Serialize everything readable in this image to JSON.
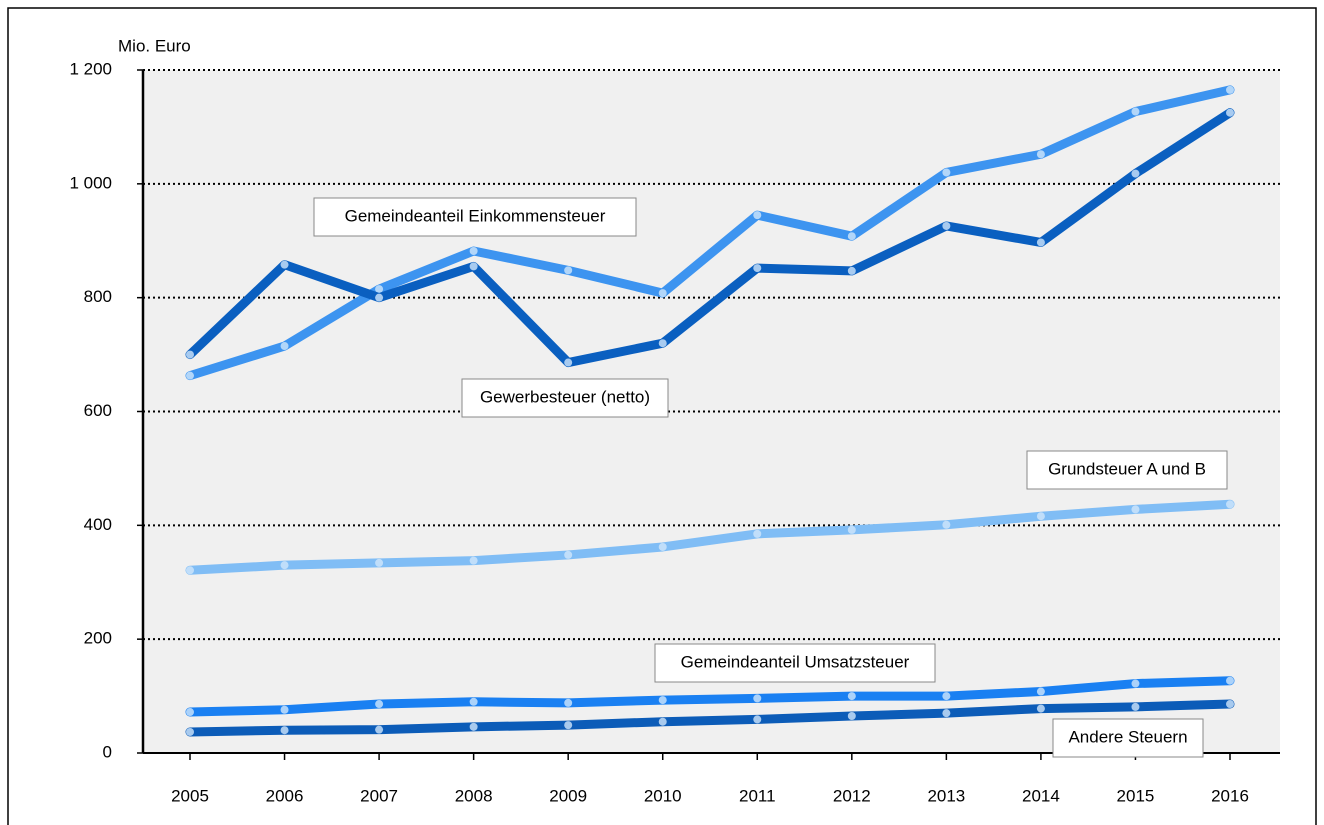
{
  "chart_data": {
    "type": "line",
    "y_axis_label": "Mio. Euro",
    "categories": [
      "2005",
      "2006",
      "2007",
      "2008",
      "2009",
      "2010",
      "2011",
      "2012",
      "2013",
      "2014",
      "2015",
      "2016"
    ],
    "series": [
      {
        "name": "Gemeindeanteil Einkommensteuer",
        "color": "#3d94f0",
        "values": [
          663,
          715,
          815,
          882,
          848,
          808,
          945,
          908,
          1020,
          1052,
          1127,
          1165
        ]
      },
      {
        "name": "Gewerbesteuer (netto)",
        "color": "#0a5fc0",
        "values": [
          700,
          858,
          800,
          855,
          686,
          720,
          852,
          847,
          926,
          897,
          1018,
          1125
        ]
      },
      {
        "name": "Grundsteuer A und B",
        "color": "#80bdf5",
        "values": [
          321,
          330,
          334,
          338,
          348,
          362,
          385,
          392,
          401,
          416,
          428,
          437
        ]
      },
      {
        "name": "Gemeindeanteil Umsatzsteuer",
        "color": "#1a80f2",
        "values": [
          72,
          76,
          86,
          90,
          88,
          93,
          96,
          100,
          100,
          108,
          122,
          127
        ]
      },
      {
        "name": "Andere Steuern",
        "color": "#0c5cb8",
        "values": [
          37,
          40,
          41,
          46,
          49,
          55,
          59,
          65,
          70,
          78,
          81,
          86
        ]
      }
    ],
    "ylim": [
      0,
      1200
    ],
    "yticks": [
      0,
      200,
      400,
      600,
      800,
      {
        "value": 1000,
        "label": "1 000"
      },
      {
        "value": 1200,
        "label": "1 200"
      }
    ],
    "grid": true
  }
}
